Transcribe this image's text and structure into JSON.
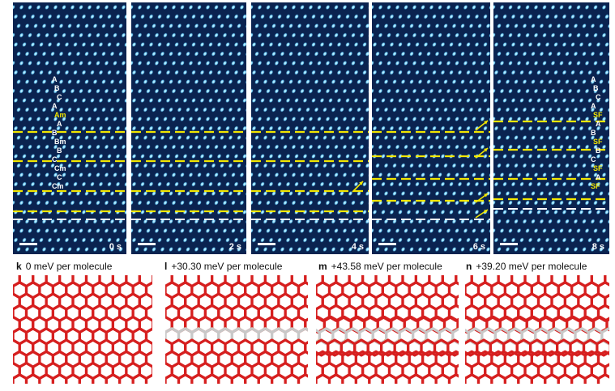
{
  "tem_panels": [
    {
      "time": "0 s"
    },
    {
      "time": "2 s"
    },
    {
      "time": "4 s"
    },
    {
      "time": "6 s"
    },
    {
      "time": "8 s"
    }
  ],
  "panel1_labels": [
    "A",
    "B",
    "C",
    "A",
    "Am",
    "A",
    "B",
    "Bm",
    "B",
    "C",
    "Cm",
    "C",
    "Cm"
  ],
  "panel5_labels": [
    "A",
    "B",
    "C",
    "A",
    "SF",
    "A",
    "B",
    "SF",
    "B",
    "C",
    "SF",
    "A",
    "SF"
  ],
  "simulations": [
    {
      "letter": "k",
      "energy": "0 meV per molecule"
    },
    {
      "letter": "l",
      "energy": "+30.30 meV per molecule"
    },
    {
      "letter": "m",
      "energy": "+43.58 meV per molecule"
    },
    {
      "letter": "n",
      "energy": "+39.20 meV per molecule"
    }
  ],
  "colors": {
    "lattice_bg": "#0a2350",
    "lattice_spot": "#6fd2ff",
    "stacking_fault_line": "#f2e600",
    "reference_line": "#ffffff",
    "arrow": "#f2e600",
    "oxygen": "#d61f1f",
    "hydrogen": "#c8c8c8",
    "defect_atom": "#f0a020"
  }
}
